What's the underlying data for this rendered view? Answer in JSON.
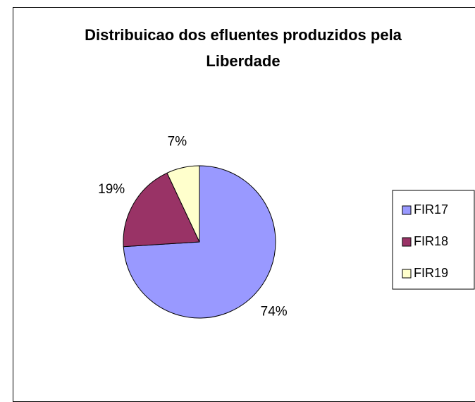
{
  "chart_data": {
    "type": "pie",
    "title": "Distribuicao dos efluentes produzidos pela Liberdade",
    "categories": [
      "FIR17",
      "FIR18",
      "FIR19"
    ],
    "values": [
      74,
      19,
      7
    ],
    "value_labels": [
      "74%",
      "19%",
      "7%"
    ],
    "colors": [
      "#9999ff",
      "#993366",
      "#ffffcc"
    ],
    "legend": "right"
  }
}
